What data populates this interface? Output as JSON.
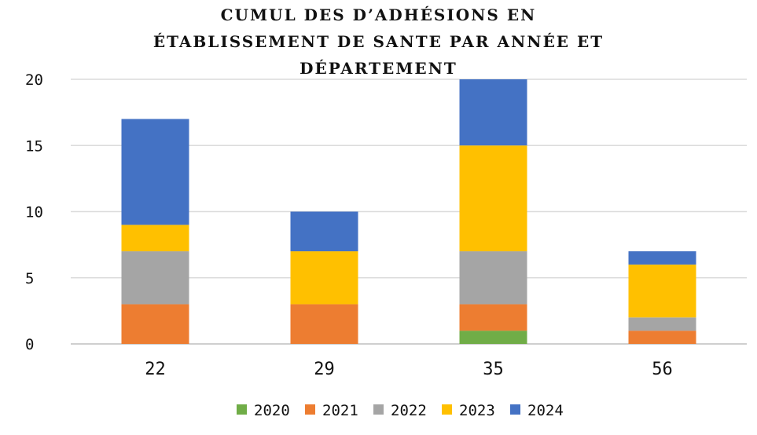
{
  "chart_data": {
    "type": "bar",
    "stacked": true,
    "title_lines": [
      "CUMUL DES D’ADHÉSIONS EN",
      "ÉTABLISSEMENT DE SANTE PAR ANNÉE ET",
      "DÉPARTEMENT"
    ],
    "xlabel": "",
    "ylabel": "",
    "categories": [
      "22",
      "29",
      "35",
      "56"
    ],
    "ylim": [
      0,
      20
    ],
    "yticks": [
      0,
      5,
      10,
      15,
      20
    ],
    "grid": true,
    "legend_position": "bottom",
    "series": [
      {
        "name": "2020",
        "color": "#70ad47",
        "values": [
          0,
          0,
          1,
          0
        ]
      },
      {
        "name": "2021",
        "color": "#ed7d31",
        "values": [
          3,
          3,
          2,
          1
        ]
      },
      {
        "name": "2022",
        "color": "#a5a5a5",
        "values": [
          4,
          0,
          4,
          1
        ]
      },
      {
        "name": "2023",
        "color": "#ffc000",
        "values": [
          2,
          4,
          8,
          4
        ]
      },
      {
        "name": "2024",
        "color": "#4472c4",
        "values": [
          8,
          3,
          5,
          1
        ]
      }
    ]
  }
}
